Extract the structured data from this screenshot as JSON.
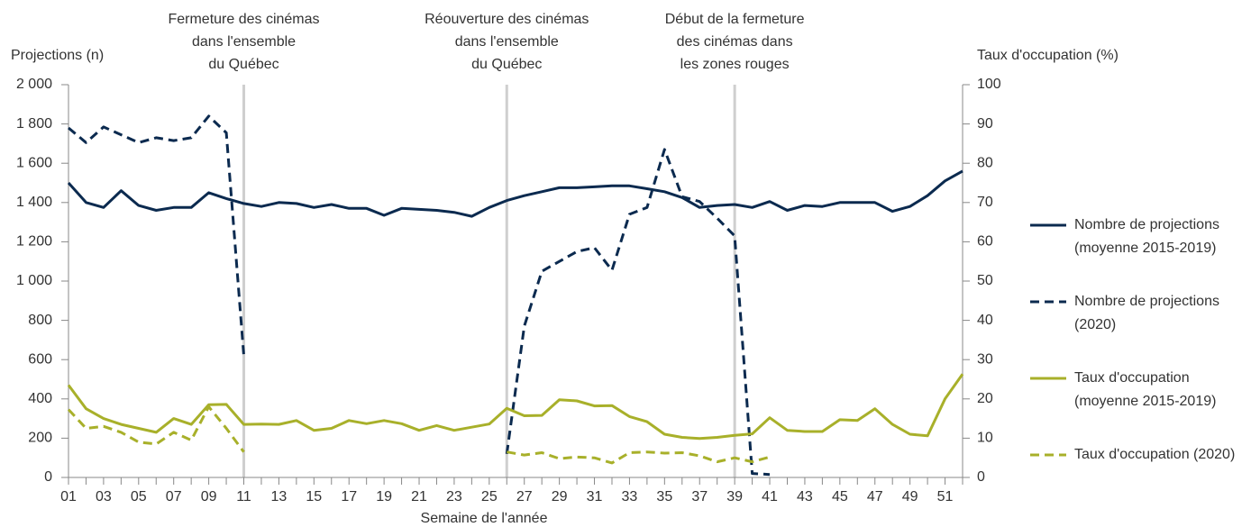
{
  "chart_data": {
    "type": "line",
    "ylabel": "Projections (n)",
    "y2label": "Taux d'occupation (%)",
    "xlabel": "Semaine de l'année",
    "categories": [
      "01",
      null,
      "03",
      null,
      "05",
      null,
      "07",
      null,
      "09",
      null,
      "11",
      null,
      "13",
      null,
      "15",
      null,
      "17",
      null,
      "19",
      null,
      "21",
      null,
      "23",
      null,
      "25",
      null,
      "27",
      null,
      "29",
      null,
      "31",
      null,
      "33",
      null,
      "35",
      null,
      "37",
      null,
      "39",
      null,
      "41",
      null,
      "43",
      null,
      "45",
      null,
      "47",
      null,
      "49",
      null,
      "51",
      null
    ],
    "ylim": [
      0,
      2000
    ],
    "yticks": [
      0,
      200,
      400,
      600,
      800,
      {
        "value": 1000,
        "label": "1 000"
      },
      {
        "value": 1200,
        "label": "1 200"
      },
      {
        "value": 1400,
        "label": "1 400"
      },
      {
        "value": 1600,
        "label": "1 600"
      },
      {
        "value": 1800,
        "label": "1 800"
      },
      {
        "value": 2000,
        "label": "2 000"
      }
    ],
    "y2lim": [
      0,
      100
    ],
    "y2ticks": [
      0,
      10,
      20,
      30,
      40,
      50,
      60,
      70,
      80,
      90,
      100
    ],
    "annotations": [
      {
        "week": 10,
        "lines": [
          "Fermeture des cinémas",
          "dans l'ensemble",
          "du Québec"
        ]
      },
      {
        "week": 25,
        "lines": [
          "Réouverture des cinémas",
          "dans l'ensemble",
          "du Québec"
        ]
      },
      {
        "week": 38,
        "lines": [
          "Début de la fermeture",
          "des cinémas dans",
          "les zones rouges"
        ]
      }
    ],
    "series": [
      {
        "name": "Nombre de projections (moyenne 2015-2019)",
        "color": "#0b2a4f",
        "linestyle": "solid",
        "values": [
          1500,
          1400,
          1375,
          1460,
          1385,
          1360,
          1375,
          1375,
          1450,
          1420,
          1395,
          1380,
          1400,
          1395,
          1375,
          1390,
          1370,
          1370,
          1335,
          1370,
          1365,
          1360,
          1350,
          1330,
          1375,
          1410,
          1435,
          1455,
          1475,
          1475,
          1480,
          1485,
          1485,
          1470,
          1455,
          1425,
          1375,
          1385,
          1390,
          1375,
          1405,
          1360,
          1385,
          1380,
          1400,
          1400,
          1400,
          1355,
          1380,
          1435,
          1510,
          1560
        ]
      },
      {
        "name": "Nombre de projections (2020)",
        "color": "#0b2a4f",
        "linestyle": "dashed",
        "values": [
          1780,
          1705,
          1785,
          1745,
          1705,
          1730,
          1715,
          1730,
          1840,
          1755,
          620,
          null,
          null,
          null,
          null,
          null,
          null,
          null,
          null,
          null,
          null,
          null,
          null,
          null,
          null,
          120,
          770,
          1050,
          1100,
          1150,
          1170,
          1055,
          1340,
          1375,
          1670,
          1430,
          1405,
          1320,
          1230,
          20,
          15,
          null,
          null,
          null,
          null,
          null,
          null,
          null,
          null,
          null,
          null,
          null
        ]
      },
      {
        "name": "Taux d'occupation (moyenne 2015-2019)",
        "color": "#a8b02a",
        "linestyle": "solid",
        "axis": "y2",
        "values": [
          23.5,
          17.5,
          15,
          13.5,
          12.5,
          11.5,
          15,
          13.5,
          18.5,
          18.6,
          13.5,
          13.6,
          13.5,
          14.5,
          12,
          12.5,
          14.5,
          13.7,
          14.5,
          13.7,
          12,
          13.2,
          12,
          12.8,
          13.6,
          17.6,
          15.7,
          15.8,
          19.8,
          19.5,
          18.2,
          18.3,
          15.5,
          14.2,
          11,
          10.2,
          9.9,
          10.2,
          10.7,
          11.1,
          15.2,
          12,
          11.7,
          11.7,
          14.7,
          14.5,
          17.5,
          13.5,
          11,
          10.6,
          20,
          26.3
        ]
      },
      {
        "name": "Taux d'occupation (2020)",
        "color": "#a8b02a",
        "linestyle": "dashed",
        "axis": "y2",
        "values": [
          17.3,
          12.5,
          13,
          11.5,
          9,
          8.5,
          11.5,
          9.5,
          18,
          12.5,
          6.5,
          null,
          null,
          null,
          null,
          null,
          null,
          null,
          null,
          null,
          null,
          null,
          null,
          null,
          null,
          6.5,
          5.7,
          6.3,
          4.8,
          5.2,
          5,
          3.7,
          6.3,
          6.5,
          6.2,
          6.3,
          5.5,
          4,
          5,
          4,
          5.2,
          null,
          null,
          null,
          null,
          null,
          null,
          null,
          null,
          null,
          null,
          null
        ]
      }
    ]
  }
}
